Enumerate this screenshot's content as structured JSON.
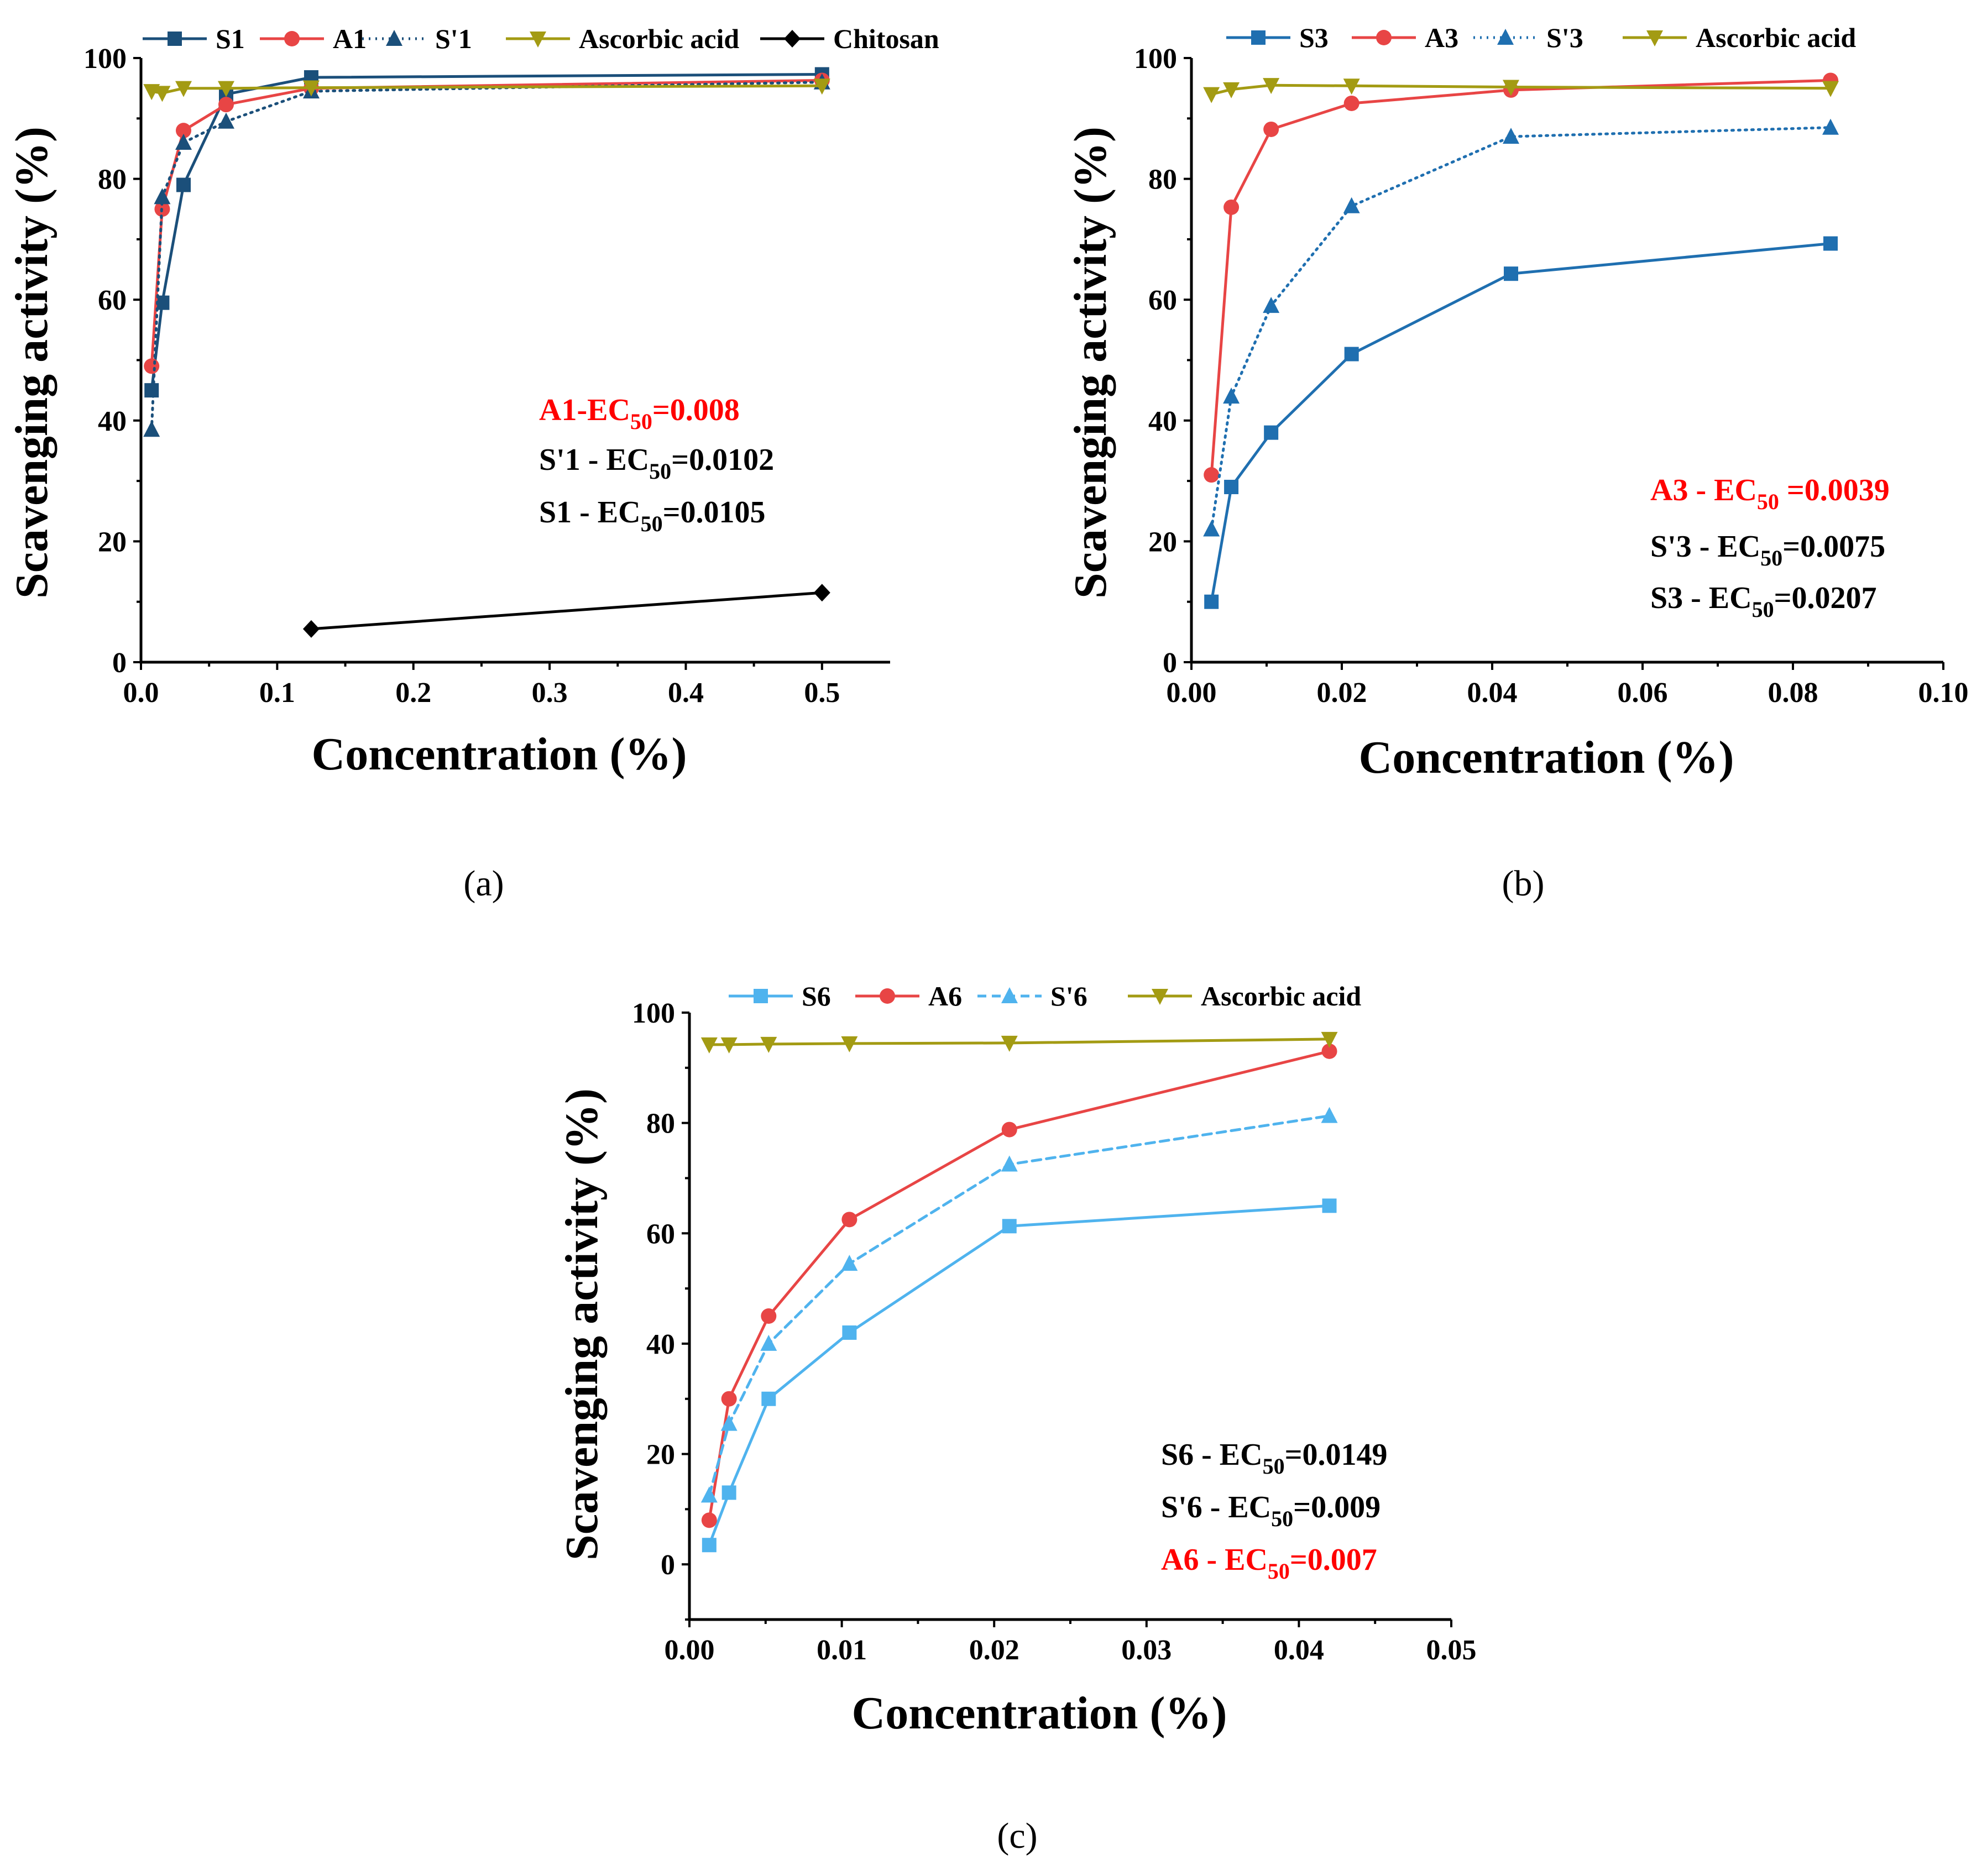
{
  "colors": {
    "S_dark": "#1b4f7a",
    "S_mid": "#1f6fb0",
    "S_light": "#4fb3ee",
    "A_red": "#e84545",
    "ascorbic": "#a39b13",
    "chitosan": "#000000",
    "anno_red": "#ff0000",
    "anno_black": "#000000"
  },
  "chart_data": [
    {
      "type": "line",
      "panel": "(a)",
      "xlabel": "Concentration (%)",
      "ylabel": "Scavenging activity (%)",
      "xlim": [
        0,
        0.55
      ],
      "ylim": [
        0,
        100
      ],
      "xticks": [
        0.0,
        0.1,
        0.2,
        0.3,
        0.4,
        0.5
      ],
      "xtick_labels": [
        "0.0",
        "0.1",
        "0.2",
        "0.3",
        "0.4",
        "0.5"
      ],
      "yticks": [
        0,
        20,
        40,
        60,
        80,
        100
      ],
      "ytick_labels": [
        "0",
        "20",
        "40",
        "60",
        "80",
        "100"
      ],
      "series": [
        {
          "name": "S1",
          "color_key": "S_dark",
          "marker": "square",
          "dash": "solid",
          "x": [
            0.0078,
            0.0156,
            0.03125,
            0.0625,
            0.125,
            0.5
          ],
          "y": [
            45,
            59.5,
            79,
            94,
            96.8,
            97.3
          ]
        },
        {
          "name": "A1",
          "color_key": "A_red",
          "marker": "circle",
          "dash": "solid",
          "x": [
            0.0078,
            0.0156,
            0.03125,
            0.0625,
            0.125,
            0.5
          ],
          "y": [
            49,
            75,
            88,
            92.3,
            95,
            96.3
          ]
        },
        {
          "name": "S'1",
          "color_key": "S_dark",
          "marker": "triangle",
          "dash": "dotted",
          "x": [
            0.0078,
            0.0156,
            0.03125,
            0.0625,
            0.125,
            0.5
          ],
          "y": [
            38.5,
            77,
            86,
            89.5,
            94.5,
            96
          ]
        },
        {
          "name": "Ascorbic acid",
          "color_key": "ascorbic",
          "marker": "triangle-down",
          "dash": "solid",
          "x": [
            0.0078,
            0.0156,
            0.03125,
            0.0625,
            0.125,
            0.5
          ],
          "y": [
            94.5,
            94.2,
            95,
            95,
            95.1,
            95.4
          ]
        },
        {
          "name": "Chitosan",
          "color_key": "chitosan",
          "marker": "diamond",
          "dash": "solid",
          "x": [
            0.125,
            0.5
          ],
          "y": [
            5.5,
            11.5
          ]
        }
      ],
      "annotations": [
        {
          "prefix": "A1-EC",
          "sub": "50",
          "suffix": "=0.008",
          "color_key": "anno_red"
        },
        {
          "prefix": "S'1 - EC",
          "sub": "50",
          "suffix": "=0.0102",
          "color_key": "anno_black"
        },
        {
          "prefix": "S1 - EC",
          "sub": "50",
          "suffix": "=0.0105",
          "color_key": "anno_black"
        }
      ]
    },
    {
      "type": "line",
      "panel": "(b)",
      "xlabel": "Concentration (%)",
      "ylabel": "Scavenging activity (%)",
      "xlim": [
        0,
        0.1
      ],
      "ylim": [
        0,
        100
      ],
      "xticks": [
        0.0,
        0.02,
        0.04,
        0.06,
        0.08,
        0.1
      ],
      "xtick_labels": [
        "0.00",
        "0.02",
        "0.04",
        "0.06",
        "0.08",
        "0.10"
      ],
      "yticks": [
        0,
        20,
        40,
        60,
        80,
        100
      ],
      "ytick_labels": [
        "0",
        "20",
        "40",
        "60",
        "80",
        "100"
      ],
      "series": [
        {
          "name": "S3",
          "color_key": "S_mid",
          "marker": "square",
          "dash": "solid",
          "x": [
            0.00266,
            0.0053,
            0.0106,
            0.0213,
            0.0425,
            0.085
          ],
          "y": [
            10,
            29,
            38,
            51,
            64.3,
            69.3
          ]
        },
        {
          "name": "A3",
          "color_key": "A_red",
          "marker": "circle",
          "dash": "solid",
          "x": [
            0.00266,
            0.0053,
            0.0106,
            0.0213,
            0.0425,
            0.085
          ],
          "y": [
            31,
            75.3,
            88.2,
            92.5,
            94.7,
            96.3
          ]
        },
        {
          "name": "S'3",
          "color_key": "S_mid",
          "marker": "triangle",
          "dash": "dotted",
          "x": [
            0.00266,
            0.0053,
            0.0106,
            0.0213,
            0.0425,
            0.085
          ],
          "y": [
            22,
            44,
            59,
            75.5,
            87,
            88.5
          ]
        },
        {
          "name": "Ascorbic acid",
          "color_key": "ascorbic",
          "marker": "triangle-down",
          "dash": "solid",
          "x": [
            0.00266,
            0.0053,
            0.0106,
            0.0213,
            0.0425,
            0.085
          ],
          "y": [
            94,
            94.8,
            95.5,
            95.4,
            95.2,
            95
          ]
        }
      ],
      "annotations": [
        {
          "prefix": "A3 - EC",
          "sub": "50",
          "suffix": " =0.0039",
          "color_key": "anno_red"
        },
        {
          "prefix": "S'3 - EC",
          "sub": "50",
          "suffix": "=0.0075",
          "color_key": "anno_black"
        },
        {
          "prefix": "S3 - EC",
          "sub": "50",
          "suffix": "=0.0207",
          "color_key": "anno_black"
        }
      ]
    },
    {
      "type": "line",
      "panel": "(c)",
      "xlabel": "Concentration (%)",
      "ylabel": "Scavenging activity (%)",
      "xlim": [
        0,
        0.05
      ],
      "ylim": [
        -10,
        100
      ],
      "xticks": [
        0.0,
        0.01,
        0.02,
        0.03,
        0.04,
        0.05
      ],
      "xtick_labels": [
        "0.00",
        "0.01",
        "0.02",
        "0.03",
        "0.04",
        "0.05"
      ],
      "yticks": [
        0,
        20,
        40,
        60,
        80,
        100
      ],
      "ytick_labels": [
        "0",
        "20",
        "40",
        "60",
        "80",
        "100"
      ],
      "series": [
        {
          "name": "S6",
          "color_key": "S_light",
          "marker": "square",
          "dash": "solid",
          "x": [
            0.0013,
            0.0026,
            0.0052,
            0.0105,
            0.021,
            0.042
          ],
          "y": [
            3.5,
            13,
            30,
            42,
            61.3,
            65
          ]
        },
        {
          "name": "A6",
          "color_key": "A_red",
          "marker": "circle",
          "dash": "solid",
          "x": [
            0.0013,
            0.0026,
            0.0052,
            0.0105,
            0.021,
            0.042
          ],
          "y": [
            8,
            30,
            45,
            62.5,
            78.8,
            93
          ]
        },
        {
          "name": "S'6",
          "color_key": "S_light",
          "marker": "triangle",
          "dash": "dashed",
          "x": [
            0.0013,
            0.0026,
            0.0052,
            0.0105,
            0.021,
            0.042
          ],
          "y": [
            12.5,
            25.5,
            40,
            54.5,
            72.5,
            81.3
          ]
        },
        {
          "name": "Ascorbic acid",
          "color_key": "ascorbic",
          "marker": "triangle-down",
          "dash": "solid",
          "x": [
            0.0013,
            0.0026,
            0.0052,
            0.0105,
            0.021,
            0.042
          ],
          "y": [
            94.2,
            94.2,
            94.3,
            94.4,
            94.5,
            95.2
          ]
        }
      ],
      "annotations": [
        {
          "prefix": "S6 - EC",
          "sub": "50",
          "suffix": "=0.0149",
          "color_key": "anno_black"
        },
        {
          "prefix": "S'6 - EC",
          "sub": "50",
          "suffix": "=0.009",
          "color_key": "anno_black"
        },
        {
          "prefix": "A6 - EC",
          "sub": "50",
          "suffix": "=0.007",
          "color_key": "anno_red"
        }
      ]
    }
  ],
  "captions": [
    "(a)",
    "(b)",
    "(c)"
  ]
}
